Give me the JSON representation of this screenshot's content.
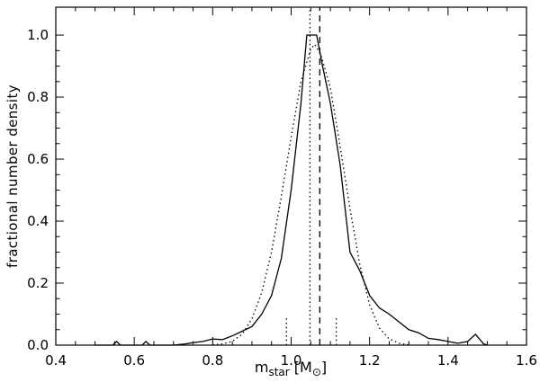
{
  "figure": {
    "background": "#ffffff",
    "axis_color": "#000000",
    "line_color": "#000000"
  },
  "axis_labels": {
    "y": "fractional number density",
    "x_m": "m",
    "x_sub_star": "star",
    "x_open": " [",
    "x_M": "M",
    "x_sun": "⊙",
    "x_close": "]"
  },
  "chart_data": {
    "type": "line",
    "title": "",
    "xlabel": "m_star [M_sun]",
    "ylabel": "fractional number density",
    "xlim": [
      0.4,
      1.6
    ],
    "ylim": [
      0,
      1.09
    ],
    "grid": false,
    "legend": "none",
    "xticks": {
      "major": [
        0.4,
        0.6,
        0.8,
        1.0,
        1.2,
        1.4,
        1.6
      ],
      "labels": [
        "0.4",
        "0.6",
        "0.8",
        "1.0",
        "1.2",
        "1.4",
        "1.6"
      ],
      "minor_step": 0.05
    },
    "yticks": {
      "major": [
        0.0,
        0.2,
        0.4,
        0.6,
        0.8,
        1.0
      ],
      "labels": [
        "0.0",
        "0.2",
        "0.4",
        "0.6",
        "0.8",
        "1.0"
      ],
      "minor_step": 0.05
    },
    "series": [
      {
        "name": "measured-distribution",
        "style": "solid",
        "width": 1.3,
        "points": [
          [
            0.5,
            0.0
          ],
          [
            0.545,
            0.0
          ],
          [
            0.555,
            0.012
          ],
          [
            0.565,
            0.0
          ],
          [
            0.62,
            0.0
          ],
          [
            0.63,
            0.012
          ],
          [
            0.64,
            0.0
          ],
          [
            0.7,
            0.0
          ],
          [
            0.73,
            0.004
          ],
          [
            0.75,
            0.008
          ],
          [
            0.775,
            0.012
          ],
          [
            0.8,
            0.02
          ],
          [
            0.825,
            0.018
          ],
          [
            0.85,
            0.03
          ],
          [
            0.875,
            0.045
          ],
          [
            0.9,
            0.06
          ],
          [
            0.925,
            0.1
          ],
          [
            0.95,
            0.16
          ],
          [
            0.975,
            0.28
          ],
          [
            1.0,
            0.5
          ],
          [
            1.025,
            0.78
          ],
          [
            1.04,
            1.0
          ],
          [
            1.065,
            1.0
          ],
          [
            1.08,
            0.9
          ],
          [
            1.1,
            0.78
          ],
          [
            1.125,
            0.58
          ],
          [
            1.15,
            0.3
          ],
          [
            1.175,
            0.24
          ],
          [
            1.2,
            0.16
          ],
          [
            1.225,
            0.12
          ],
          [
            1.25,
            0.1
          ],
          [
            1.275,
            0.075
          ],
          [
            1.3,
            0.05
          ],
          [
            1.325,
            0.04
          ],
          [
            1.35,
            0.022
          ],
          [
            1.375,
            0.018
          ],
          [
            1.4,
            0.012
          ],
          [
            1.425,
            0.006
          ],
          [
            1.45,
            0.012
          ],
          [
            1.47,
            0.035
          ],
          [
            1.49,
            0.005
          ],
          [
            1.5,
            0.0
          ]
        ]
      },
      {
        "name": "gaussian-fit",
        "style": "dotted",
        "width": 1.3,
        "points": [
          [
            0.8,
            0.001
          ],
          [
            0.825,
            0.004
          ],
          [
            0.85,
            0.012
          ],
          [
            0.875,
            0.035
          ],
          [
            0.9,
            0.085
          ],
          [
            0.925,
            0.17
          ],
          [
            0.95,
            0.3
          ],
          [
            0.975,
            0.48
          ],
          [
            1.0,
            0.67
          ],
          [
            1.025,
            0.85
          ],
          [
            1.05,
            0.955
          ],
          [
            1.06,
            0.97
          ],
          [
            1.075,
            0.94
          ],
          [
            1.1,
            0.83
          ],
          [
            1.125,
            0.64
          ],
          [
            1.15,
            0.44
          ],
          [
            1.175,
            0.26
          ],
          [
            1.2,
            0.13
          ],
          [
            1.225,
            0.055
          ],
          [
            1.25,
            0.02
          ],
          [
            1.275,
            0.006
          ],
          [
            1.3,
            0.001
          ]
        ]
      },
      {
        "name": "vertical-dashed-marker",
        "style": "dashed",
        "width": 1.3,
        "points": [
          [
            1.073,
            0
          ],
          [
            1.073,
            1.09
          ]
        ]
      },
      {
        "name": "vertical-dotted-marker",
        "style": "dotted",
        "width": 1.3,
        "points": [
          [
            1.048,
            0
          ],
          [
            1.048,
            1.09
          ]
        ]
      },
      {
        "name": "spike-left",
        "style": "dotted",
        "width": 1.3,
        "points": [
          [
            0.988,
            0
          ],
          [
            0.988,
            0.095
          ]
        ]
      },
      {
        "name": "spike-right",
        "style": "dotted",
        "width": 1.3,
        "points": [
          [
            1.115,
            0
          ],
          [
            1.115,
            0.095
          ]
        ]
      }
    ]
  }
}
